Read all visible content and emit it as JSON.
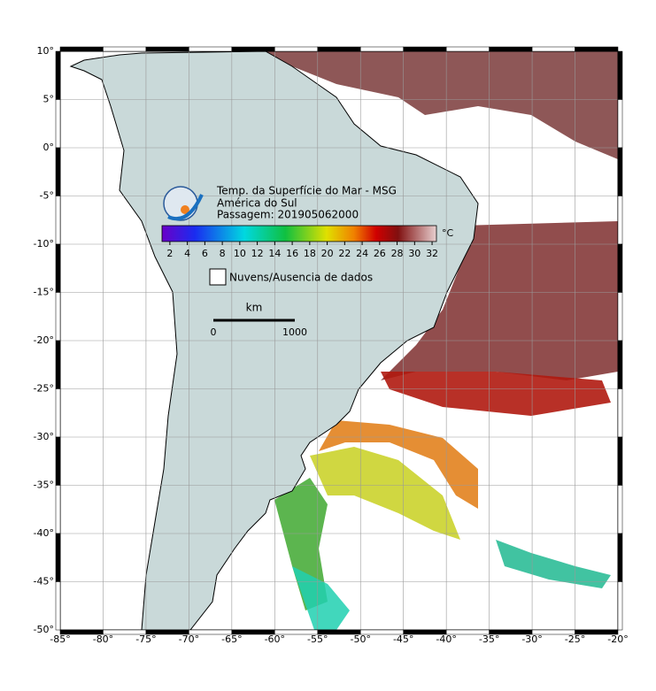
{
  "map": {
    "title": "Temp. da Superfície do Mar - MSG",
    "region": "América do Sul",
    "pass": "Passagem: 201905062000",
    "colorbar": {
      "unit": "°C",
      "lim": [
        1.1,
        32.5
      ],
      "ticks": [
        2,
        4,
        6,
        8,
        10,
        12,
        14,
        16,
        18,
        20,
        22,
        24,
        26,
        28,
        30,
        32
      ]
    },
    "legend": "Nuvens/Ausencia de dados",
    "scale": {
      "unit": "km",
      "labels": [
        "0",
        "1000"
      ]
    },
    "xlim": [
      -85,
      -20
    ],
    "ylim": [
      -50,
      10
    ],
    "xticks": [
      {
        "value": -85,
        "label": "-85°"
      },
      {
        "value": -80,
        "label": "-80°"
      },
      {
        "value": -75,
        "label": "-75°"
      },
      {
        "value": -70,
        "label": "-70°"
      },
      {
        "value": -65,
        "label": "-65°"
      },
      {
        "value": -60,
        "label": "-60°"
      },
      {
        "value": -55,
        "label": "-55°"
      },
      {
        "value": -50,
        "label": "-50°"
      },
      {
        "value": -45,
        "label": "-45°"
      },
      {
        "value": -40,
        "label": "-40°"
      },
      {
        "value": -35,
        "label": "-35°"
      },
      {
        "value": -30,
        "label": "-30°"
      },
      {
        "value": -25,
        "label": "-25°"
      },
      {
        "value": -20,
        "label": "-20°"
      }
    ],
    "yticks": [
      {
        "value": 10,
        "label": "10°"
      },
      {
        "value": 5,
        "label": "5°"
      },
      {
        "value": 0,
        "label": "0°"
      },
      {
        "value": -5,
        "label": "-5°"
      },
      {
        "value": -10,
        "label": "-10°"
      },
      {
        "value": -15,
        "label": "-15°"
      },
      {
        "value": -20,
        "label": "-20°"
      },
      {
        "value": -25,
        "label": "-25°"
      },
      {
        "value": -30,
        "label": "-30°"
      },
      {
        "value": -35,
        "label": "-35°"
      },
      {
        "value": -40,
        "label": "-40°"
      },
      {
        "value": -45,
        "label": "-45°"
      },
      {
        "value": -50,
        "label": "-50°"
      }
    ]
  }
}
